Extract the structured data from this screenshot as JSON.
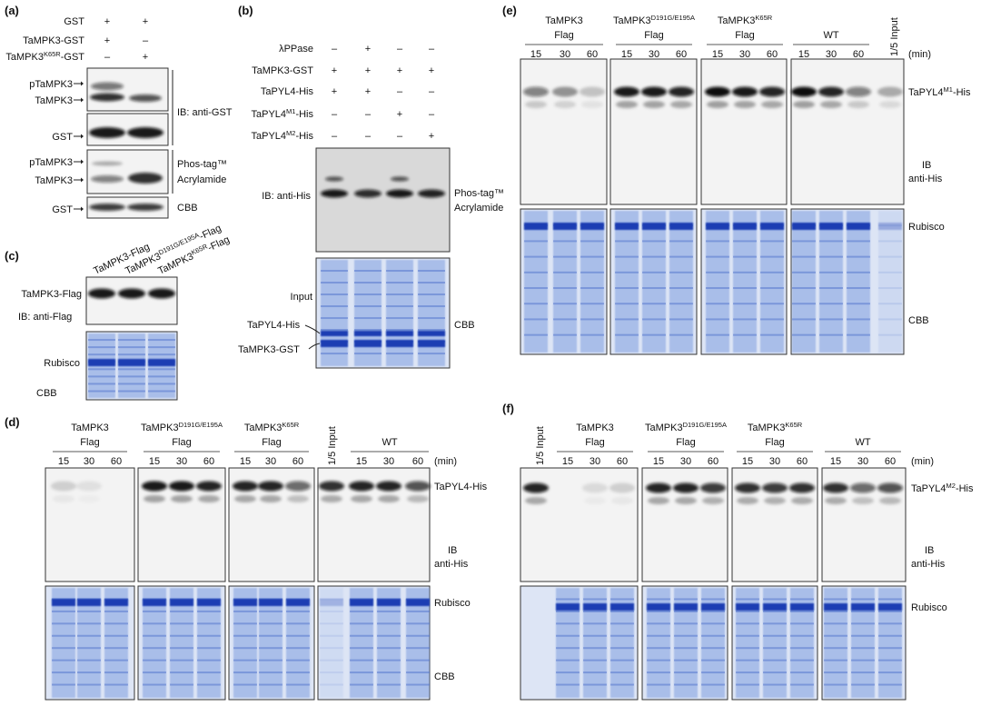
{
  "panel_a": {
    "label": "(a)",
    "rows": [
      {
        "name": "GST",
        "signs": [
          "+",
          "+"
        ]
      },
      {
        "name": "TaMPK3-GST",
        "signs": [
          "+",
          "–"
        ]
      },
      {
        "name": {
          "text": "TaMPK3",
          "sup": "K65R",
          "after": "-GST"
        },
        "signs": [
          "–",
          "+"
        ]
      }
    ],
    "markers": [
      "pTaMPK3",
      "TaMPK3",
      "GST",
      "pTaMPK3",
      "TaMPK3",
      "GST"
    ],
    "ib": "IB: anti-GST",
    "phos": [
      "Phos-tag™",
      "Acrylamide"
    ],
    "stain": "CBB"
  },
  "panel_b": {
    "label": "(b)",
    "rows": [
      {
        "name": "λPPase",
        "signs": [
          "–",
          "+",
          "–",
          "–"
        ]
      },
      {
        "name": "TaMPK3-GST",
        "signs": [
          "+",
          "+",
          "+",
          "+"
        ]
      },
      {
        "name": "TaPYL4-His",
        "signs": [
          "+",
          "+",
          "–",
          "–"
        ]
      },
      {
        "name": {
          "text": "TaPYL4",
          "sup": "M1",
          "after": "-His"
        },
        "signs": [
          "–",
          "–",
          "+",
          "–"
        ]
      },
      {
        "name": {
          "text": "TaPYL4",
          "sup": "M2",
          "after": "-His"
        },
        "signs": [
          "–",
          "–",
          "–",
          "+"
        ]
      }
    ],
    "ib": "IB: anti-His",
    "phos": [
      "Phos-tag™",
      "Acrylamide"
    ],
    "cbb_labels": [
      "Input",
      "TaPYL4-His",
      "TaMPK3-GST"
    ],
    "stain": "CBB"
  },
  "panel_c": {
    "label": "(c)",
    "lanes": [
      "TaMPK3-Flag",
      {
        "text": "TaMPK3",
        "sup": "D191G/E195A",
        "after": "-Flag"
      },
      {
        "text": "TaMPK3",
        "sup": "K65R",
        "after": "-Flag"
      }
    ],
    "marker": "TaMPK3-Flag",
    "ib": "IB: anti-Flag",
    "band": "Rubisco",
    "stain": "CBB"
  },
  "panel_d": {
    "label": "(d)",
    "groups": [
      {
        "name": "TaMPK3",
        "sub": "Flag",
        "times": [
          "15",
          "30",
          "60"
        ]
      },
      {
        "name": {
          "text": "TaMPK3",
          "sup": "D191G/E195A"
        },
        "sub": "Flag",
        "times": [
          "15",
          "30",
          "60"
        ]
      },
      {
        "name": {
          "text": "TaMPK3",
          "sup": "K65R"
        },
        "sub": "Flag",
        "times": [
          "15",
          "30",
          "60"
        ]
      },
      {
        "input": "1/5 Input"
      },
      {
        "name": "WT",
        "times": [
          "15",
          "30",
          "60"
        ]
      }
    ],
    "unit": "(min)",
    "protein": "TaPYL4-His",
    "ib": [
      "IB",
      "anti-His"
    ],
    "band": "Rubisco",
    "stain": "CBB"
  },
  "panel_e": {
    "label": "(e)",
    "groups": [
      {
        "name": "TaMPK3",
        "sub": "Flag",
        "times": [
          "15",
          "30",
          "60"
        ]
      },
      {
        "name": {
          "text": "TaMPK3",
          "sup": "D191G/E195A"
        },
        "sub": "Flag",
        "times": [
          "15",
          "30",
          "60"
        ]
      },
      {
        "name": {
          "text": "TaMPK3",
          "sup": "K65R"
        },
        "sub": "Flag",
        "times": [
          "15",
          "30",
          "60"
        ]
      },
      {
        "name": "WT",
        "times": [
          "15",
          "30",
          "60"
        ]
      },
      {
        "input": "1/5 Input"
      }
    ],
    "unit": "(min)",
    "protein": {
      "text": "TaPYL4",
      "sup": "M1",
      "after": "-His"
    },
    "ib": [
      "IB",
      "anti-His"
    ],
    "band": "Rubisco",
    "stain": "CBB"
  },
  "panel_f": {
    "label": "(f)",
    "groups": [
      {
        "input": "1/5 Input"
      },
      {
        "name": "TaMPK3",
        "sub": "Flag",
        "times": [
          "15",
          "30",
          "60"
        ]
      },
      {
        "name": {
          "text": "TaMPK3",
          "sup": "D191G/E195A"
        },
        "sub": "Flag",
        "times": [
          "15",
          "30",
          "60"
        ]
      },
      {
        "name": {
          "text": "TaMPK3",
          "sup": "K65R"
        },
        "sub": "Flag",
        "times": [
          "15",
          "30",
          "60"
        ]
      },
      {
        "name": "WT",
        "times": [
          "15",
          "30",
          "60"
        ]
      }
    ],
    "unit": "(min)",
    "protein": {
      "text": "TaPYL4",
      "sup": "M2",
      "after": "-His"
    },
    "ib": [
      "IB",
      "anti-His"
    ],
    "band": "Rubisco"
  }
}
